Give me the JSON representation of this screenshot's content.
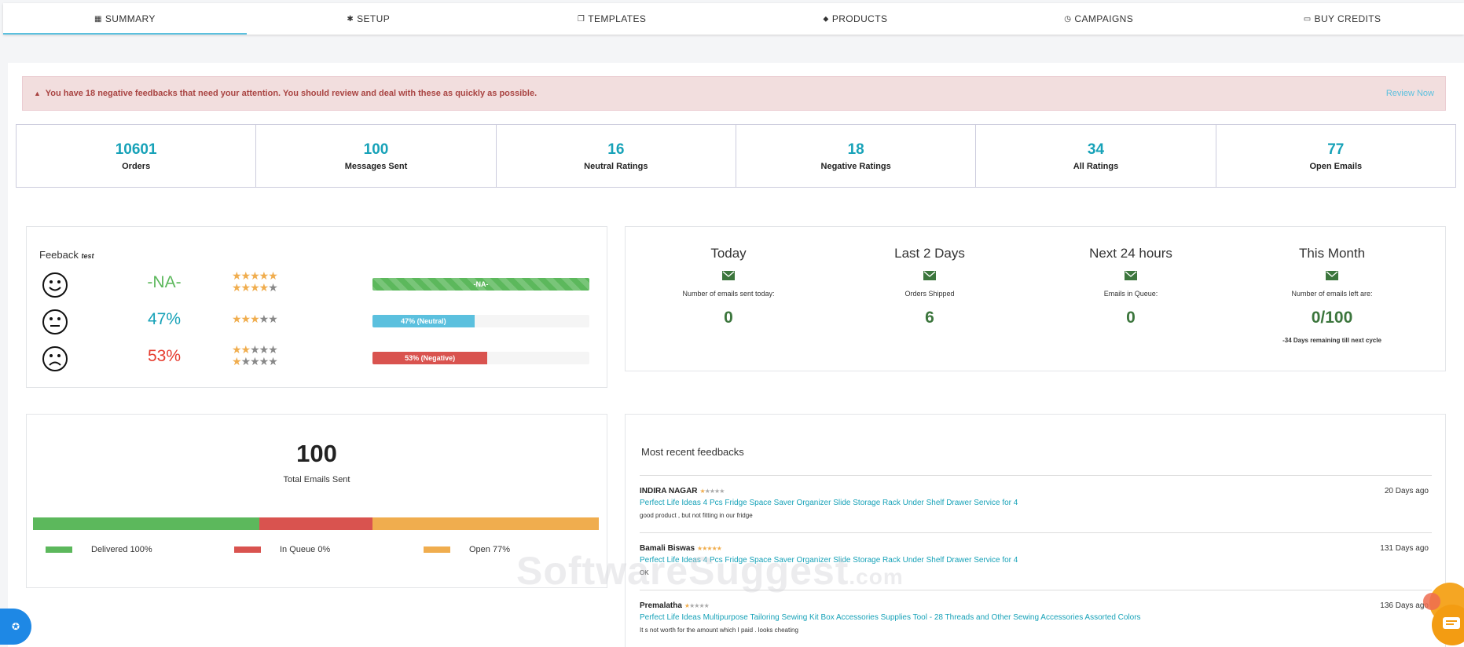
{
  "nav": {
    "tabs": [
      {
        "icon": "▦",
        "label": "SUMMARY"
      },
      {
        "icon": "✱",
        "label": "SETUP"
      },
      {
        "icon": "❐",
        "label": "TEMPLATES"
      },
      {
        "icon": "⬥",
        "label": "PRODUCTS"
      },
      {
        "icon": "◷",
        "label": "CAMPAIGNS"
      },
      {
        "icon": "▭",
        "label": "BUY CREDITS"
      }
    ],
    "active": "SUMMARY"
  },
  "alert": {
    "icon": "▲",
    "message": "You have 18 negative feedbacks that need your attention. You should review and deal with these as quickly as possible.",
    "link": "Review Now"
  },
  "stats": [
    {
      "value": "10601",
      "label": "Orders"
    },
    {
      "value": "100",
      "label": "Messages Sent"
    },
    {
      "value": "16",
      "label": "Neutral Ratings"
    },
    {
      "value": "18",
      "label": "Negative Ratings"
    },
    {
      "value": "34",
      "label": "All Ratings"
    },
    {
      "value": "77",
      "label": "Open Emails"
    }
  ],
  "feedback": {
    "title": "Feeback",
    "title_suffix": "test",
    "rows": [
      {
        "face": "happy-face-icon",
        "percent": "-NA-",
        "color": "#5cb85c",
        "stars": [
          5,
          4
        ],
        "bar_label": "-NA-",
        "bar_fraction": 1.0,
        "bar_color": "#5cb85c",
        "striped": true
      },
      {
        "face": "neutral-face-icon",
        "percent": "47%",
        "color": "#17a2b8",
        "stars": [
          3
        ],
        "bar_label": "47% (Neutral)",
        "bar_fraction": 0.47,
        "bar_color": "#5bc0de",
        "striped": false
      },
      {
        "face": "sad-face-icon",
        "percent": "53%",
        "color": "#e63b2e",
        "stars": [
          2,
          1
        ],
        "bar_label": "53% (Negative)",
        "bar_fraction": 0.53,
        "bar_color": "#d9534f",
        "striped": false
      }
    ]
  },
  "email_stats": [
    {
      "heading": "Today",
      "sub": "Number of emails sent today:",
      "value": "0",
      "note": ""
    },
    {
      "heading": "Last 2 Days",
      "sub": "Orders Shipped",
      "value": "6",
      "note": ""
    },
    {
      "heading": "Next 24 hours",
      "sub": "Emails in Queue:",
      "value": "0",
      "note": ""
    },
    {
      "heading": "This Month",
      "sub": "Number of emails left are:",
      "value": "0/100",
      "note": "-34 Days remaining till next cycle"
    }
  ],
  "total_emails": {
    "value": "100",
    "label": "Total Emails Sent",
    "segments": [
      {
        "label": "Delivered 100%",
        "color": "#5cb85c",
        "fraction": 0.4
      },
      {
        "label": "In Queue 0%",
        "color": "#d9534f",
        "fraction": 0.2
      },
      {
        "label": "Open 77%",
        "color": "#f0ad4e",
        "fraction": 0.4
      }
    ]
  },
  "recent_feedbacks": {
    "title": "Most recent feedbacks",
    "items": [
      {
        "name": "INDIRA NAGAR",
        "rating": 1,
        "days": "20 Days ago",
        "product": "Perfect Life Ideas 4 Pcs Fridge Space Saver Organizer Slide Storage Rack Under Shelf Drawer Service for 4",
        "comment": "good product , but not fitting in our fridge"
      },
      {
        "name": "Bamali Biswas",
        "rating": 5,
        "days": "131 Days ago",
        "product": "Perfect Life Ideas 4 Pcs Fridge Space Saver Organizer Slide Storage Rack Under Shelf Drawer Service for 4",
        "comment": "OK"
      },
      {
        "name": "Premalatha",
        "rating": 1,
        "days": "136 Days ago",
        "product": "Perfect Life Ideas Multipurpose Tailoring Sewing Kit Box Accessories Supplies Tool - 28 Threads and Other Sewing Accessories Assorted Colors",
        "comment": "It s not worth for the amount which I paid . looks cheating"
      }
    ]
  },
  "watermark": {
    "main": "SoftwareSuggest",
    "suffix": ".com"
  }
}
